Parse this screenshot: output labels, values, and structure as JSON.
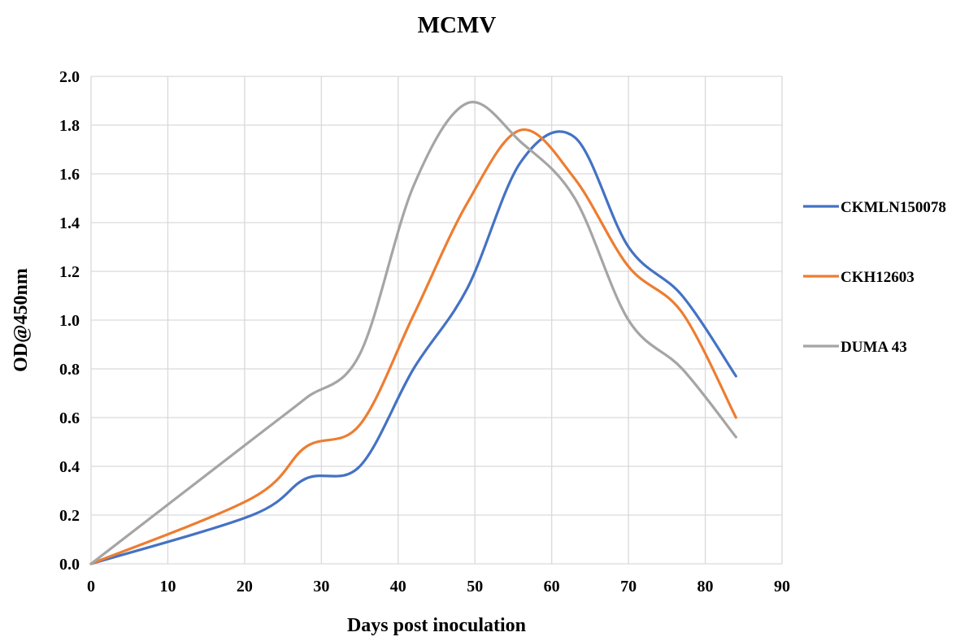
{
  "chart_data": {
    "type": "line",
    "title": "MCMV",
    "xlabel": "Days post inoculation",
    "ylabel": "OD@450nm",
    "xlim": [
      0,
      90
    ],
    "ylim": [
      0,
      2.0
    ],
    "x_ticks": [
      0,
      10,
      20,
      30,
      40,
      50,
      60,
      70,
      80,
      90
    ],
    "y_ticks": [
      0.0,
      0.2,
      0.4,
      0.6,
      0.8,
      1.0,
      1.2,
      1.4,
      1.6,
      1.8,
      2.0
    ],
    "x_tick_labels": [
      "0",
      "10",
      "20",
      "30",
      "40",
      "50",
      "60",
      "70",
      "80",
      "90"
    ],
    "y_tick_labels": [
      "0.0",
      "0.2",
      "0.4",
      "0.6",
      "0.8",
      "1.0",
      "1.2",
      "1.4",
      "1.6",
      "1.8",
      "2.0"
    ],
    "grid": true,
    "smooth": true,
    "legend_position": "right",
    "series": [
      {
        "name": "CKMLN150078",
        "color": "#4472C4",
        "x": [
          0,
          21,
          28,
          35,
          42,
          49,
          56,
          63,
          70,
          77,
          84
        ],
        "y": [
          0.0,
          0.2,
          0.35,
          0.4,
          0.8,
          1.13,
          1.65,
          1.75,
          1.3,
          1.1,
          0.77
        ]
      },
      {
        "name": "CKH12603",
        "color": "#ED7D31",
        "x": [
          0,
          21,
          28,
          35,
          42,
          49,
          56,
          63,
          70,
          77,
          84
        ],
        "y": [
          0.0,
          0.27,
          0.48,
          0.57,
          1.02,
          1.48,
          1.78,
          1.58,
          1.22,
          1.03,
          0.6
        ]
      },
      {
        "name": "DUMA 43",
        "color": "#A5A5A5",
        "x": [
          0,
          21,
          28,
          35,
          42,
          49,
          56,
          63,
          70,
          77,
          84
        ],
        "y": [
          0.0,
          0.51,
          0.68,
          0.86,
          1.55,
          1.89,
          1.73,
          1.5,
          1.0,
          0.8,
          0.52
        ]
      }
    ]
  }
}
